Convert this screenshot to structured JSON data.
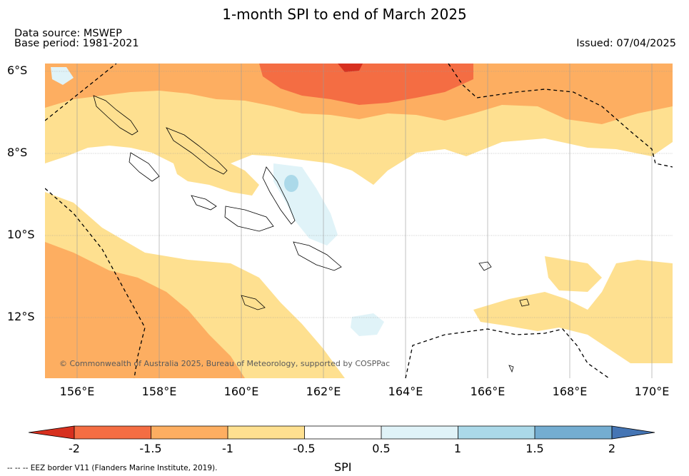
{
  "header": {
    "title": "1-month SPI to end of March 2025",
    "data_source": "Data source: MSWEP",
    "base_period": "Base period: 1981-2021",
    "issued": "Issued: 07/04/2025"
  },
  "map": {
    "lat_labels": [
      "6°S",
      "8°S",
      "10°S",
      "12°S"
    ],
    "lon_labels": [
      "156°E",
      "158°E",
      "160°E",
      "162°E",
      "164°E",
      "166°E",
      "168°E",
      "170°E"
    ],
    "copyright": "© Commonwealth of Australia 2025, Bureau of Meteorology, supported by COSPPac",
    "eez_note": "--  --  -- EEZ border V11 (Flanders Marine Institute, 2019)."
  },
  "legend": {
    "title": "SPI",
    "ticks": [
      "-2",
      "-1.5",
      "-1",
      "-0.5",
      "0.5",
      "1",
      "1.5",
      "2"
    ],
    "colors": {
      "below_-2": "#d7301f",
      "-2_-1.5": "#f46d43",
      "-1.5_-1": "#fdae61",
      "-1_-0.5": "#fee090",
      "-0.5_0.5": "#ffffff",
      "0.5_1": "#e0f3f8",
      "1_1.5": "#abd9e9",
      "1.5_2": "#74add1",
      "above_2": "#4575b4"
    }
  }
}
